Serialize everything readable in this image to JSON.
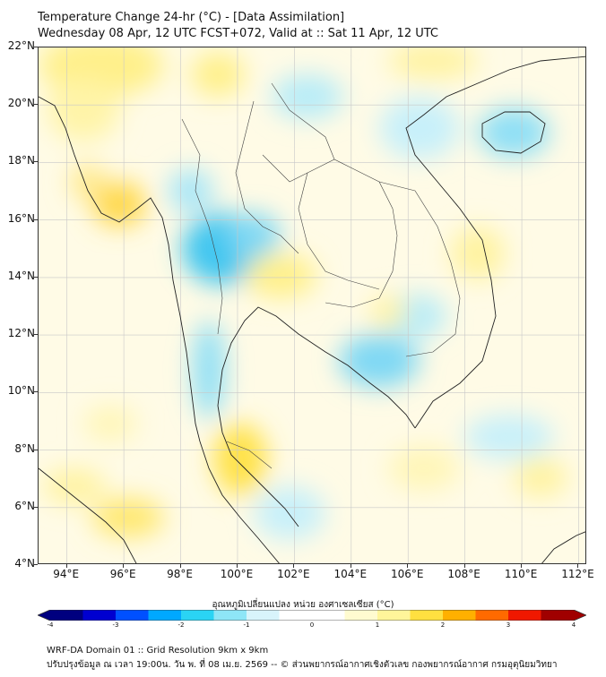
{
  "title": {
    "line1": "Temperature Change 24-hr (°C) - [Data Assimilation]",
    "line2": "Wednesday 08 Apr, 12 UTC FCST+072, Valid at :: Sat 11 Apr, 12 UTC"
  },
  "map": {
    "lat_labels": [
      "22°N",
      "20°N",
      "18°N",
      "16°N",
      "14°N",
      "12°N",
      "10°N",
      "8°N",
      "6°N",
      "4°N"
    ],
    "lon_labels": [
      "94°E",
      "96°E",
      "98°E",
      "100°E",
      "102°E",
      "104°E",
      "106°E",
      "108°E",
      "110°E",
      "112°E"
    ],
    "lat_range": [
      4,
      22
    ],
    "lon_range": [
      93,
      112.3
    ]
  },
  "colorbar": {
    "title": "อุณหภูมิเปลี่ยนแปลง หน่วย องศาเซลเซียส (°C)",
    "range": [
      -4,
      4
    ],
    "tick_labels": [
      "-4",
      "-3",
      "-2",
      "-1",
      "0",
      "1",
      "2",
      "3",
      "4"
    ],
    "colors": [
      "#00007f",
      "#0000d0",
      "#0050ff",
      "#00a8ff",
      "#2ad4f4",
      "#8ee6f7",
      "#d8f4fb",
      "#ffffff",
      "#ffffff",
      "#fffbd0",
      "#fff59a",
      "#ffe040",
      "#ffb000",
      "#ff6a00",
      "#f01800",
      "#a00000"
    ]
  },
  "footer": {
    "line1": "WRF-DA Domain 01 :: Grid Resolution 9km x 9km",
    "line2": "ปรับปรุงข้อมูล ณ เวลา 19:00น. วัน พ. ที่ 08 เม.ย. 2569 -- © ส่วนพยากรณ์อากาศเชิงตัวเลข กองพยากรณ์อากาศ กรมอุตุนิยมวิทยา"
  }
}
